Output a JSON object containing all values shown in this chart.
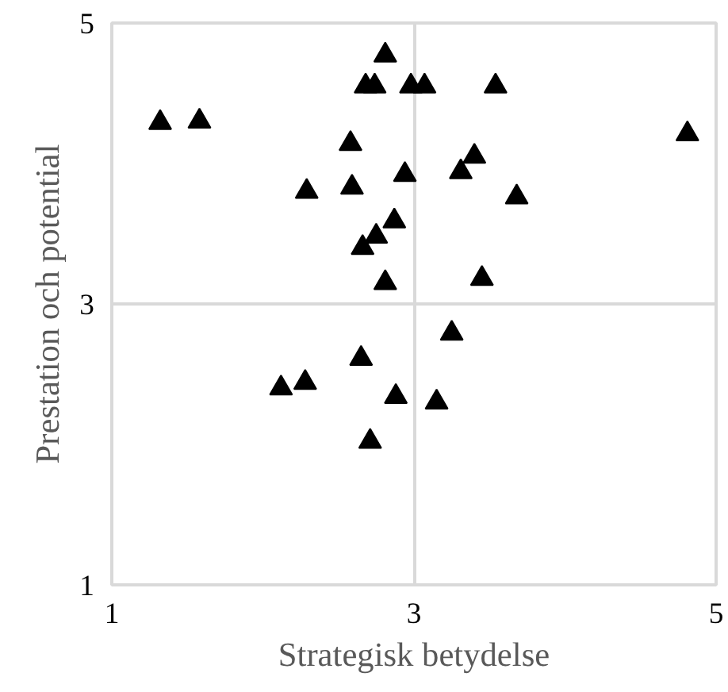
{
  "chart_data": {
    "type": "scatter",
    "xlabel": "Strategisk betydelse",
    "ylabel": "Prestation och potential",
    "xlim": [
      1,
      5
    ],
    "ylim": [
      1,
      5
    ],
    "xticks": [
      1,
      3,
      5
    ],
    "yticks": [
      1,
      3,
      5
    ],
    "grid": true,
    "marker": "triangle",
    "series": [
      {
        "color": "#000000",
        "x": [
          1.32,
          1.58,
          2.81,
          2.68,
          2.74,
          2.98,
          3.07,
          3.54,
          4.81,
          2.58,
          3.4,
          3.31,
          2.94,
          2.29,
          2.59,
          3.68,
          2.87,
          2.75,
          2.66,
          2.81,
          3.45,
          3.25,
          2.65,
          2.12,
          2.28,
          2.88,
          3.15,
          2.71
        ],
        "values": [
          4.29,
          4.3,
          4.77,
          4.55,
          4.55,
          4.55,
          4.55,
          4.55,
          4.21,
          4.14,
          4.05,
          3.94,
          3.92,
          3.8,
          3.83,
          3.76,
          3.59,
          3.48,
          3.4,
          3.15,
          3.18,
          2.79,
          2.61,
          2.4,
          2.44,
          2.34,
          2.3,
          2.02
        ]
      }
    ]
  }
}
